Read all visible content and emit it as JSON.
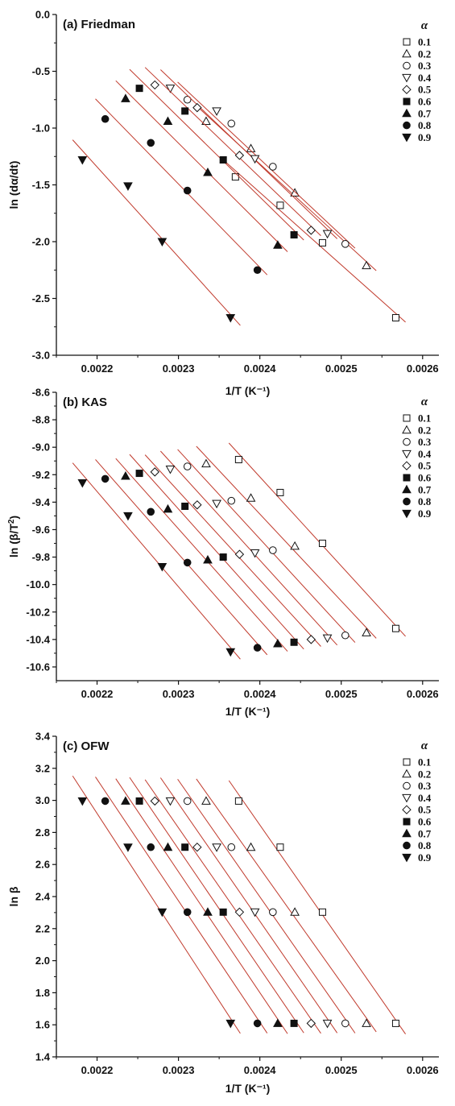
{
  "chart_data": [
    {
      "type": "scatter",
      "title": "(a) Friedman",
      "xlabel": "1/T (K⁻¹)",
      "ylabel_main": "ln (dα/dt)",
      "xlim": [
        0.00215,
        0.00262
      ],
      "ylim": [
        -3.0,
        0.0
      ],
      "xticks": [
        "0.0022",
        "0.0023",
        "0.0024",
        "0.0025",
        "0.0026"
      ],
      "yticks": [
        "0.0",
        "-0.5",
        "-1.0",
        "-1.5",
        "-2.0",
        "-2.5",
        "-3.0"
      ],
      "legend_title": "α",
      "grid": false,
      "legend_position": "top-right",
      "fit_line_color": "#c0392b",
      "series": [
        {
          "name": "0.1",
          "marker": "square-open",
          "x": [
            0.00237,
            0.002425,
            0.002477,
            0.002567
          ],
          "y": [
            -1.43,
            -1.68,
            -2.01,
            -2.67
          ]
        },
        {
          "name": "0.2",
          "marker": "triangle-up-open",
          "x": [
            0.002334,
            0.002389,
            0.002443,
            0.002531
          ],
          "y": [
            -0.94,
            -1.18,
            -1.57,
            -2.21
          ]
        },
        {
          "name": "0.3",
          "marker": "circle-open",
          "x": [
            0.002311,
            0.002365,
            0.002416,
            0.002505
          ],
          "y": [
            -0.75,
            -0.96,
            -1.34,
            -2.02
          ]
        },
        {
          "name": "0.4",
          "marker": "triangle-down-open",
          "x": [
            0.00229,
            0.002347,
            0.002394,
            0.002483
          ],
          "y": [
            -0.65,
            -0.85,
            -1.27,
            -1.93
          ]
        },
        {
          "name": "0.5",
          "marker": "diamond-open",
          "x": [
            0.002271,
            0.002323,
            0.002375,
            0.002463
          ],
          "y": [
            -0.62,
            -0.82,
            -1.24,
            -1.9
          ]
        },
        {
          "name": "0.6",
          "marker": "square-filled",
          "x": [
            0.002252,
            0.002308,
            0.002355,
            0.002442
          ],
          "y": [
            -0.65,
            -0.85,
            -1.28,
            -1.94
          ]
        },
        {
          "name": "0.7",
          "marker": "triangle-up-filled",
          "x": [
            0.002235,
            0.002287,
            0.002336,
            0.002422
          ],
          "y": [
            -0.74,
            -0.94,
            -1.39,
            -2.03
          ]
        },
        {
          "name": "0.8",
          "marker": "circle-filled",
          "x": [
            0.00221,
            0.002266,
            0.002311,
            0.002397
          ],
          "y": [
            -0.92,
            -1.13,
            -1.55,
            -2.25
          ]
        },
        {
          "name": "0.9",
          "marker": "triangle-down-filled",
          "x": [
            0.002182,
            0.002238,
            0.00228,
            0.002364
          ],
          "y": [
            -1.28,
            -1.51,
            -2.0,
            -2.67
          ]
        }
      ]
    },
    {
      "type": "scatter",
      "title": "(b) KAS",
      "xlabel": "1/T (K⁻¹)",
      "ylabel_main": "ln (β/T",
      "ylabel_sup": "2",
      "ylabel_tail": ")",
      "xlim": [
        0.00215,
        0.00262
      ],
      "ylim": [
        -10.7,
        -8.6
      ],
      "xticks": [
        "0.0022",
        "0.0023",
        "0.0024",
        "0.0025",
        "0.0026"
      ],
      "yticks": [
        "-8.6",
        "-8.8",
        "-9.0",
        "-9.2",
        "-9.4",
        "-9.6",
        "-9.8",
        "-10.0",
        "-10.2",
        "-10.4",
        "-10.6"
      ],
      "legend_title": "α",
      "grid": false,
      "legend_position": "top-right",
      "fit_line_color": "#c0392b",
      "series": [
        {
          "name": "0.1",
          "marker": "square-open",
          "x": [
            0.002374,
            0.002425,
            0.002477,
            0.002567
          ],
          "y": [
            -9.09,
            -9.33,
            -9.7,
            -10.32
          ]
        },
        {
          "name": "0.2",
          "marker": "triangle-up-open",
          "x": [
            0.002334,
            0.002389,
            0.002443,
            0.002531
          ],
          "y": [
            -9.12,
            -9.37,
            -9.72,
            -10.35
          ]
        },
        {
          "name": "0.3",
          "marker": "circle-open",
          "x": [
            0.002311,
            0.002365,
            0.002416,
            0.002505
          ],
          "y": [
            -9.14,
            -9.39,
            -9.75,
            -10.37
          ]
        },
        {
          "name": "0.4",
          "marker": "triangle-down-open",
          "x": [
            0.00229,
            0.002347,
            0.002394,
            0.002483
          ],
          "y": [
            -9.16,
            -9.41,
            -9.77,
            -10.39
          ]
        },
        {
          "name": "0.5",
          "marker": "diamond-open",
          "x": [
            0.002271,
            0.002323,
            0.002375,
            0.002463
          ],
          "y": [
            -9.18,
            -9.42,
            -9.78,
            -10.4
          ]
        },
        {
          "name": "0.6",
          "marker": "square-filled",
          "x": [
            0.002252,
            0.002308,
            0.002355,
            0.002442
          ],
          "y": [
            -9.19,
            -9.43,
            -9.8,
            -10.42
          ]
        },
        {
          "name": "0.7",
          "marker": "triangle-up-filled",
          "x": [
            0.002235,
            0.002287,
            0.002336,
            0.002422
          ],
          "y": [
            -9.21,
            -9.45,
            -9.82,
            -10.43
          ]
        },
        {
          "name": "0.8",
          "marker": "circle-filled",
          "x": [
            0.00221,
            0.002266,
            0.002311,
            0.002397
          ],
          "y": [
            -9.23,
            -9.47,
            -9.84,
            -10.46
          ]
        },
        {
          "name": "0.9",
          "marker": "triangle-down-filled",
          "x": [
            0.002182,
            0.002238,
            0.00228,
            0.002364
          ],
          "y": [
            -9.26,
            -9.5,
            -9.87,
            -10.49
          ]
        }
      ]
    },
    {
      "type": "scatter",
      "title": "(c) OFW",
      "xlabel": "1/T (K⁻¹)",
      "ylabel_main": "ln β",
      "xlim": [
        0.00215,
        0.00262
      ],
      "ylim": [
        1.4,
        3.4
      ],
      "xticks": [
        "0.0022",
        "0.0023",
        "0.0024",
        "0.0025",
        "0.0026"
      ],
      "yticks": [
        "3.4",
        "3.2",
        "3.0",
        "2.8",
        "2.6",
        "2.4",
        "2.2",
        "2.0",
        "1.8",
        "1.6",
        "1.4"
      ],
      "legend_title": "α",
      "grid": false,
      "legend_position": "top-right",
      "fit_line_color": "#c0392b",
      "series": [
        {
          "name": "0.1",
          "marker": "square-open",
          "x": [
            0.002374,
            0.002425,
            0.002477,
            0.002567
          ],
          "y": [
            2.996,
            2.708,
            2.303,
            1.609
          ]
        },
        {
          "name": "0.2",
          "marker": "triangle-up-open",
          "x": [
            0.002334,
            0.002389,
            0.002443,
            0.002531
          ],
          "y": [
            2.996,
            2.708,
            2.303,
            1.609
          ]
        },
        {
          "name": "0.3",
          "marker": "circle-open",
          "x": [
            0.002311,
            0.002365,
            0.002416,
            0.002505
          ],
          "y": [
            2.996,
            2.708,
            2.303,
            1.609
          ]
        },
        {
          "name": "0.4",
          "marker": "triangle-down-open",
          "x": [
            0.00229,
            0.002347,
            0.002394,
            0.002483
          ],
          "y": [
            2.996,
            2.708,
            2.303,
            1.609
          ]
        },
        {
          "name": "0.5",
          "marker": "diamond-open",
          "x": [
            0.002271,
            0.002323,
            0.002375,
            0.002463
          ],
          "y": [
            2.996,
            2.708,
            2.303,
            1.609
          ]
        },
        {
          "name": "0.6",
          "marker": "square-filled",
          "x": [
            0.002252,
            0.002308,
            0.002355,
            0.002442
          ],
          "y": [
            2.996,
            2.708,
            2.303,
            1.609
          ]
        },
        {
          "name": "0.7",
          "marker": "triangle-up-filled",
          "x": [
            0.002235,
            0.002287,
            0.002336,
            0.002422
          ],
          "y": [
            2.996,
            2.708,
            2.303,
            1.609
          ]
        },
        {
          "name": "0.8",
          "marker": "circle-filled",
          "x": [
            0.00221,
            0.002266,
            0.002311,
            0.002397
          ],
          "y": [
            2.996,
            2.708,
            2.303,
            1.609
          ]
        },
        {
          "name": "0.9",
          "marker": "triangle-down-filled",
          "x": [
            0.002182,
            0.002238,
            0.00228,
            0.002364
          ],
          "y": [
            2.996,
            2.708,
            2.303,
            1.609
          ]
        }
      ]
    }
  ]
}
